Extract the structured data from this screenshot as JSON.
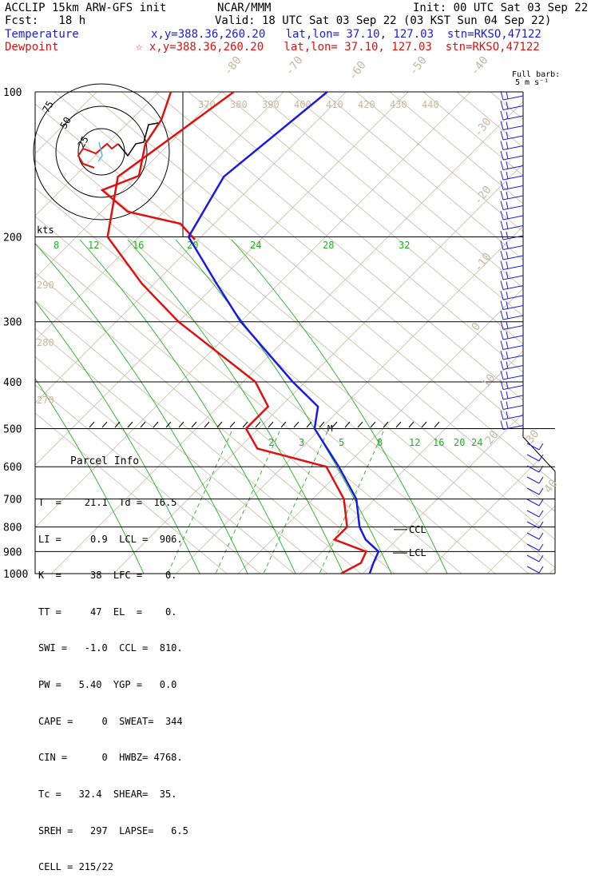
{
  "header": {
    "model": "ACCLIP 15km ARW-GFS init",
    "org": "NCAR/MMM",
    "init": "Init: 00 UTC Sat 03 Sep 22",
    "fcst": "Fcst:   18 h",
    "valid": "Valid: 18 UTC Sat 03 Sep 22 (03 KST Sun 04 Sep 22)",
    "temp_label": "Temperature",
    "temp_info": "x,y=388.36,260.20   lat,lon= 37.10, 127.03  stn=RKSO,47122",
    "dew_label": "Dewpoint",
    "dew_info": "☆ x,y=388.36,260.20   lat,lon= 37.10, 127.03  stn=RKSO,47122"
  },
  "colors": {
    "temperature": "#1a1ae6",
    "dewpoint": "#e01010",
    "isotherm": "#c8b8a0",
    "mixing_ratio": "#20b020",
    "hodo_wind": "#e01010"
  },
  "barb_label": {
    "line1": "Full barb:",
    "line2": "5 m s⁻¹"
  },
  "hodo": {
    "units": "kts",
    "ring_labels": [
      "75",
      "50",
      "25"
    ]
  },
  "markers": {
    "ccl": "CCL",
    "lcl": "LCL",
    "m": "M"
  },
  "parcel_info": {
    "title": "Parcel Info",
    "rows": [
      "T  =    21.1  Td =  16.5",
      "LI =     0.9  LCL =  906.",
      "K  =     38  LFC =    0.",
      "TT =     47  EL  =    0.",
      "SWI =   -1.0  CCL =  810.",
      "PW =   5.40  YGP =   0.0",
      "CAPE =     0  SWEAT=  344",
      "CIN =      0  HWBZ= 4768.",
      "Tc =   32.4  SHEAR=  35.",
      "SREH =   297  LAPSE=   6.5",
      "CELL = 215/22"
    ]
  },
  "chart_data": {
    "type": "line",
    "title": "",
    "ylabel": "",
    "yaxis": {
      "scale": "log-pressure",
      "ticks": [
        100,
        200,
        300,
        400,
        500,
        600,
        700,
        800,
        900,
        1000
      ]
    },
    "isotherm_labels": [
      "-80",
      "-70",
      "-60",
      "-50",
      "-40",
      "-30",
      "-20",
      "-10",
      "0",
      "10",
      "20",
      "30",
      "40"
    ],
    "theta_labels": [
      "370",
      "380",
      "390",
      "400",
      "410",
      "420",
      "430",
      "440"
    ],
    "theta_low_labels": [
      "290",
      "280",
      "270"
    ],
    "mixing_labels_upper": [
      "8",
      "12",
      "16",
      "20",
      "24",
      "28",
      "32"
    ],
    "mixing_labels_lower": [
      "2",
      "3",
      "5",
      "8",
      "12",
      "16",
      "20",
      "24"
    ],
    "series": [
      {
        "name": "Temperature",
        "points": [
          [
            100,
            -63
          ],
          [
            150,
            -66
          ],
          [
            200,
            -62
          ],
          [
            250,
            -50
          ],
          [
            300,
            -40
          ],
          [
            400,
            -22
          ],
          [
            450,
            -14
          ],
          [
            500,
            -11
          ],
          [
            600,
            -1
          ],
          [
            700,
            7
          ],
          [
            800,
            12
          ],
          [
            850,
            15
          ],
          [
            900,
            19
          ],
          [
            950,
            20
          ],
          [
            1000,
            21.1
          ]
        ]
      },
      {
        "name": "Dewpoint",
        "points": [
          [
            100,
            -78
          ],
          [
            150,
            -83
          ],
          [
            200,
            -75
          ],
          [
            250,
            -62
          ],
          [
            300,
            -50
          ],
          [
            400,
            -28
          ],
          [
            450,
            -22
          ],
          [
            500,
            -22
          ],
          [
            550,
            -17
          ],
          [
            600,
            -3
          ],
          [
            700,
            5
          ],
          [
            800,
            10
          ],
          [
            850,
            10
          ],
          [
            900,
            17
          ],
          [
            950,
            18
          ],
          [
            1000,
            16.5
          ]
        ]
      }
    ]
  }
}
